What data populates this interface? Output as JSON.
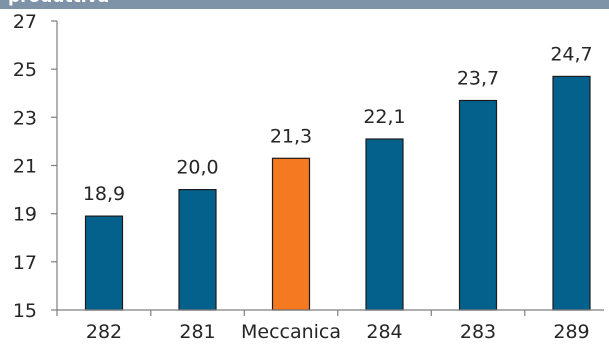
{
  "header": {
    "title": "produttiva"
  },
  "chart_data": {
    "type": "bar",
    "categories": [
      "282",
      "281",
      "Meccanica",
      "284",
      "283",
      "289"
    ],
    "values": [
      18.9,
      20.0,
      21.3,
      22.1,
      23.7,
      24.7
    ],
    "value_labels": [
      "18,9",
      "20,0",
      "21,3",
      "22,1",
      "23,7",
      "24,7"
    ],
    "highlight_category": "Meccanica",
    "colors": {
      "default": "#04618b",
      "highlight": "#f47920",
      "bar_border": "#1c1c1c",
      "axis": "#7f7f7f",
      "header_band": "#7f93a8"
    },
    "ylim": [
      15,
      27
    ],
    "yticks": [
      15,
      17,
      19,
      21,
      23,
      25,
      27
    ],
    "grid": false,
    "title": "",
    "xlabel": "",
    "ylabel": ""
  }
}
